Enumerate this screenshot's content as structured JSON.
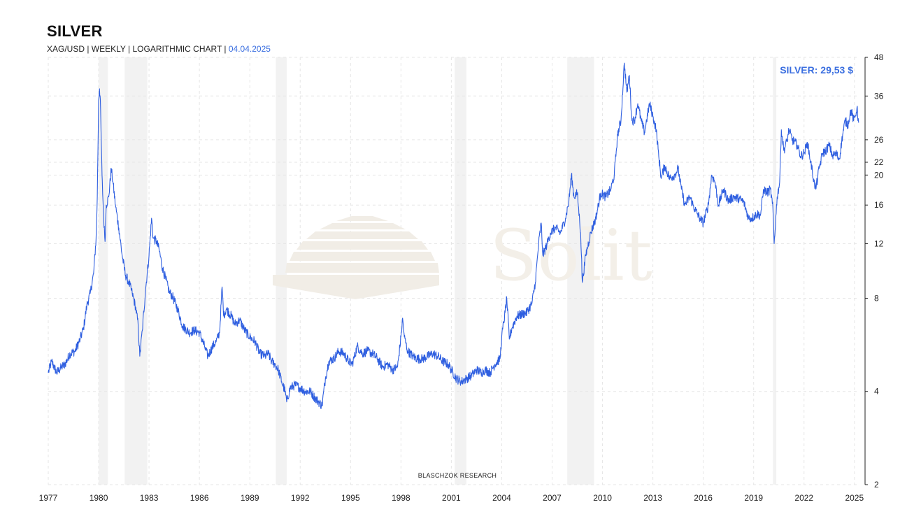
{
  "header": {
    "title": "SILVER",
    "subtitle_prefix": "XAG/USD | WEEKLY | LOGARITHMIC CHART | ",
    "date": "04.04.2025"
  },
  "price_label": "SILVER: 29,53 $",
  "credit": "BLASCHZOK  RESEARCH",
  "colors": {
    "line": "#2f5fe0",
    "recession": "#f2f2f2",
    "grid": "#e6e6e6",
    "date": "#3b6fe0",
    "watermark": "#f3efe8"
  },
  "chart_data": {
    "type": "line",
    "y_scale": "log",
    "grid": true,
    "xlim": [
      1977.0,
      2025.3
    ],
    "ylim": [
      2,
      48
    ],
    "x_ticks": [
      1977,
      1980,
      1983,
      1986,
      1989,
      1992,
      1995,
      1998,
      2001,
      2004,
      2007,
      2010,
      2013,
      2016,
      2019,
      2022,
      2025
    ],
    "y_ticks": [
      2,
      4,
      8,
      12,
      16,
      20,
      22,
      26,
      36,
      48
    ],
    "recessions": [
      [
        1980.0,
        1980.55
      ],
      [
        1981.55,
        1982.9
      ],
      [
        1990.55,
        1991.2
      ],
      [
        2001.2,
        2001.9
      ],
      [
        2007.9,
        2009.5
      ],
      [
        2020.15,
        2020.35
      ]
    ],
    "series": [
      {
        "points": [
          [
            1977.0,
            4.6
          ],
          [
            1977.2,
            5.0
          ],
          [
            1977.5,
            4.6
          ],
          [
            1977.8,
            4.8
          ],
          [
            1978.0,
            4.9
          ],
          [
            1978.3,
            5.3
          ],
          [
            1978.6,
            5.4
          ],
          [
            1978.9,
            5.9
          ],
          [
            1979.1,
            6.4
          ],
          [
            1979.3,
            7.6
          ],
          [
            1979.5,
            8.3
          ],
          [
            1979.7,
            9.6
          ],
          [
            1979.85,
            12.5
          ],
          [
            1979.92,
            17.0
          ],
          [
            1980.0,
            35.0
          ],
          [
            1980.05,
            38.0
          ],
          [
            1980.1,
            35.0
          ],
          [
            1980.2,
            20.0
          ],
          [
            1980.3,
            14.5
          ],
          [
            1980.38,
            12.2
          ],
          [
            1980.45,
            16.0
          ],
          [
            1980.6,
            17.0
          ],
          [
            1980.75,
            21.0
          ],
          [
            1980.85,
            19.0
          ],
          [
            1981.0,
            16.0
          ],
          [
            1981.2,
            13.5
          ],
          [
            1981.4,
            11.0
          ],
          [
            1981.6,
            9.5
          ],
          [
            1981.8,
            9.0
          ],
          [
            1982.0,
            8.3
          ],
          [
            1982.2,
            7.5
          ],
          [
            1982.35,
            6.6
          ],
          [
            1982.45,
            5.2
          ],
          [
            1982.6,
            6.3
          ],
          [
            1982.8,
            8.6
          ],
          [
            1983.0,
            11.0
          ],
          [
            1983.15,
            14.5
          ],
          [
            1983.25,
            12.5
          ],
          [
            1983.45,
            12.2
          ],
          [
            1983.6,
            11.5
          ],
          [
            1983.8,
            10.0
          ],
          [
            1984.0,
            9.2
          ],
          [
            1984.2,
            8.4
          ],
          [
            1984.4,
            8.1
          ],
          [
            1984.7,
            7.4
          ],
          [
            1985.0,
            6.5
          ],
          [
            1985.4,
            6.2
          ],
          [
            1985.7,
            6.3
          ],
          [
            1986.0,
            6.2
          ],
          [
            1986.3,
            5.6
          ],
          [
            1986.5,
            5.2
          ],
          [
            1986.8,
            5.6
          ],
          [
            1987.0,
            5.8
          ],
          [
            1987.2,
            6.2
          ],
          [
            1987.35,
            8.7
          ],
          [
            1987.45,
            7.0
          ],
          [
            1987.6,
            7.4
          ],
          [
            1987.9,
            7.0
          ],
          [
            1988.1,
            6.6
          ],
          [
            1988.4,
            6.8
          ],
          [
            1988.7,
            6.3
          ],
          [
            1989.0,
            6.0
          ],
          [
            1989.3,
            5.8
          ],
          [
            1989.6,
            5.3
          ],
          [
            1989.9,
            5.2
          ],
          [
            1990.1,
            5.3
          ],
          [
            1990.3,
            5.0
          ],
          [
            1990.5,
            4.9
          ],
          [
            1990.7,
            4.7
          ],
          [
            1990.9,
            4.3
          ],
          [
            1991.1,
            4.0
          ],
          [
            1991.2,
            3.7
          ],
          [
            1991.4,
            4.1
          ],
          [
            1991.7,
            4.2
          ],
          [
            1992.0,
            4.1
          ],
          [
            1992.3,
            4.0
          ],
          [
            1992.6,
            4.0
          ],
          [
            1992.9,
            3.8
          ],
          [
            1993.1,
            3.7
          ],
          [
            1993.3,
            3.6
          ],
          [
            1993.5,
            4.4
          ],
          [
            1993.7,
            5.0
          ],
          [
            1994.0,
            5.1
          ],
          [
            1994.3,
            5.4
          ],
          [
            1994.6,
            5.3
          ],
          [
            1994.9,
            5.0
          ],
          [
            1995.1,
            4.9
          ],
          [
            1995.4,
            5.6
          ],
          [
            1995.7,
            5.3
          ],
          [
            1996.0,
            5.4
          ],
          [
            1996.3,
            5.3
          ],
          [
            1996.6,
            5.1
          ],
          [
            1996.9,
            4.8
          ],
          [
            1997.2,
            4.9
          ],
          [
            1997.5,
            4.7
          ],
          [
            1997.8,
            4.8
          ],
          [
            1998.0,
            6.0
          ],
          [
            1998.1,
            6.9
          ],
          [
            1998.2,
            6.0
          ],
          [
            1998.4,
            5.4
          ],
          [
            1998.7,
            5.2
          ],
          [
            1999.0,
            5.1
          ],
          [
            1999.3,
            5.1
          ],
          [
            1999.6,
            5.2
          ],
          [
            1999.9,
            5.3
          ],
          [
            2000.2,
            5.2
          ],
          [
            2000.5,
            5.0
          ],
          [
            2000.8,
            4.9
          ],
          [
            2001.0,
            4.7
          ],
          [
            2001.3,
            4.4
          ],
          [
            2001.6,
            4.3
          ],
          [
            2001.9,
            4.4
          ],
          [
            2002.2,
            4.5
          ],
          [
            2002.5,
            4.7
          ],
          [
            2002.8,
            4.6
          ],
          [
            2003.0,
            4.7
          ],
          [
            2003.3,
            4.6
          ],
          [
            2003.6,
            4.9
          ],
          [
            2003.9,
            5.1
          ],
          [
            2004.0,
            6.0
          ],
          [
            2004.2,
            7.2
          ],
          [
            2004.3,
            8.0
          ],
          [
            2004.45,
            5.9
          ],
          [
            2004.6,
            6.4
          ],
          [
            2004.9,
            7.0
          ],
          [
            2005.2,
            7.1
          ],
          [
            2005.5,
            7.2
          ],
          [
            2005.8,
            7.7
          ],
          [
            2006.0,
            9.0
          ],
          [
            2006.2,
            12.0
          ],
          [
            2006.35,
            14.0
          ],
          [
            2006.45,
            11.0
          ],
          [
            2006.7,
            12.0
          ],
          [
            2006.9,
            13.0
          ],
          [
            2007.2,
            13.5
          ],
          [
            2007.5,
            13.0
          ],
          [
            2007.8,
            14.5
          ],
          [
            2008.0,
            16.5
          ],
          [
            2008.15,
            20.0
          ],
          [
            2008.3,
            17.0
          ],
          [
            2008.5,
            17.5
          ],
          [
            2008.7,
            13.0
          ],
          [
            2008.8,
            9.0
          ],
          [
            2009.0,
            11.0
          ],
          [
            2009.3,
            13.0
          ],
          [
            2009.6,
            14.5
          ],
          [
            2009.9,
            17.5
          ],
          [
            2010.2,
            17.0
          ],
          [
            2010.5,
            18.0
          ],
          [
            2010.7,
            20.0
          ],
          [
            2010.9,
            27.0
          ],
          [
            2011.1,
            30.0
          ],
          [
            2011.3,
            46.0
          ],
          [
            2011.45,
            37.0
          ],
          [
            2011.6,
            42.0
          ],
          [
            2011.75,
            30.0
          ],
          [
            2011.9,
            30.0
          ],
          [
            2012.1,
            34.0
          ],
          [
            2012.3,
            30.0
          ],
          [
            2012.5,
            27.5
          ],
          [
            2012.8,
            34.0
          ],
          [
            2013.0,
            31.0
          ],
          [
            2013.2,
            28.0
          ],
          [
            2013.35,
            23.0
          ],
          [
            2013.5,
            19.5
          ],
          [
            2013.7,
            21.5
          ],
          [
            2014.0,
            19.5
          ],
          [
            2014.3,
            20.0
          ],
          [
            2014.5,
            21.0
          ],
          [
            2014.7,
            18.0
          ],
          [
            2014.9,
            16.0
          ],
          [
            2015.2,
            17.0
          ],
          [
            2015.5,
            15.5
          ],
          [
            2015.8,
            14.5
          ],
          [
            2016.0,
            14.0
          ],
          [
            2016.3,
            16.0
          ],
          [
            2016.5,
            20.0
          ],
          [
            2016.7,
            19.0
          ],
          [
            2016.9,
            16.0
          ],
          [
            2017.2,
            18.0
          ],
          [
            2017.5,
            16.5
          ],
          [
            2017.8,
            17.0
          ],
          [
            2018.1,
            16.8
          ],
          [
            2018.4,
            16.4
          ],
          [
            2018.7,
            14.5
          ],
          [
            2018.9,
            14.5
          ],
          [
            2019.2,
            15.0
          ],
          [
            2019.4,
            14.8
          ],
          [
            2019.6,
            18.0
          ],
          [
            2019.8,
            17.5
          ],
          [
            2020.0,
            18.0
          ],
          [
            2020.15,
            15.5
          ],
          [
            2020.22,
            12.0
          ],
          [
            2020.4,
            17.0
          ],
          [
            2020.55,
            19.0
          ],
          [
            2020.65,
            28.0
          ],
          [
            2020.8,
            24.0
          ],
          [
            2021.0,
            26.0
          ],
          [
            2021.1,
            28.0
          ],
          [
            2021.3,
            26.0
          ],
          [
            2021.6,
            25.0
          ],
          [
            2021.8,
            23.0
          ],
          [
            2022.0,
            23.5
          ],
          [
            2022.2,
            25.5
          ],
          [
            2022.4,
            22.0
          ],
          [
            2022.6,
            19.0
          ],
          [
            2022.7,
            18.0
          ],
          [
            2022.9,
            21.0
          ],
          [
            2023.1,
            23.5
          ],
          [
            2023.3,
            24.0
          ],
          [
            2023.5,
            25.0
          ],
          [
            2023.7,
            23.0
          ],
          [
            2023.9,
            23.5
          ],
          [
            2024.1,
            22.5
          ],
          [
            2024.3,
            27.0
          ],
          [
            2024.45,
            30.0
          ],
          [
            2024.6,
            29.0
          ],
          [
            2024.8,
            32.5
          ],
          [
            2024.95,
            30.0
          ],
          [
            2025.05,
            31.0
          ],
          [
            2025.15,
            33.0
          ],
          [
            2025.25,
            29.53
          ]
        ]
      }
    ]
  }
}
